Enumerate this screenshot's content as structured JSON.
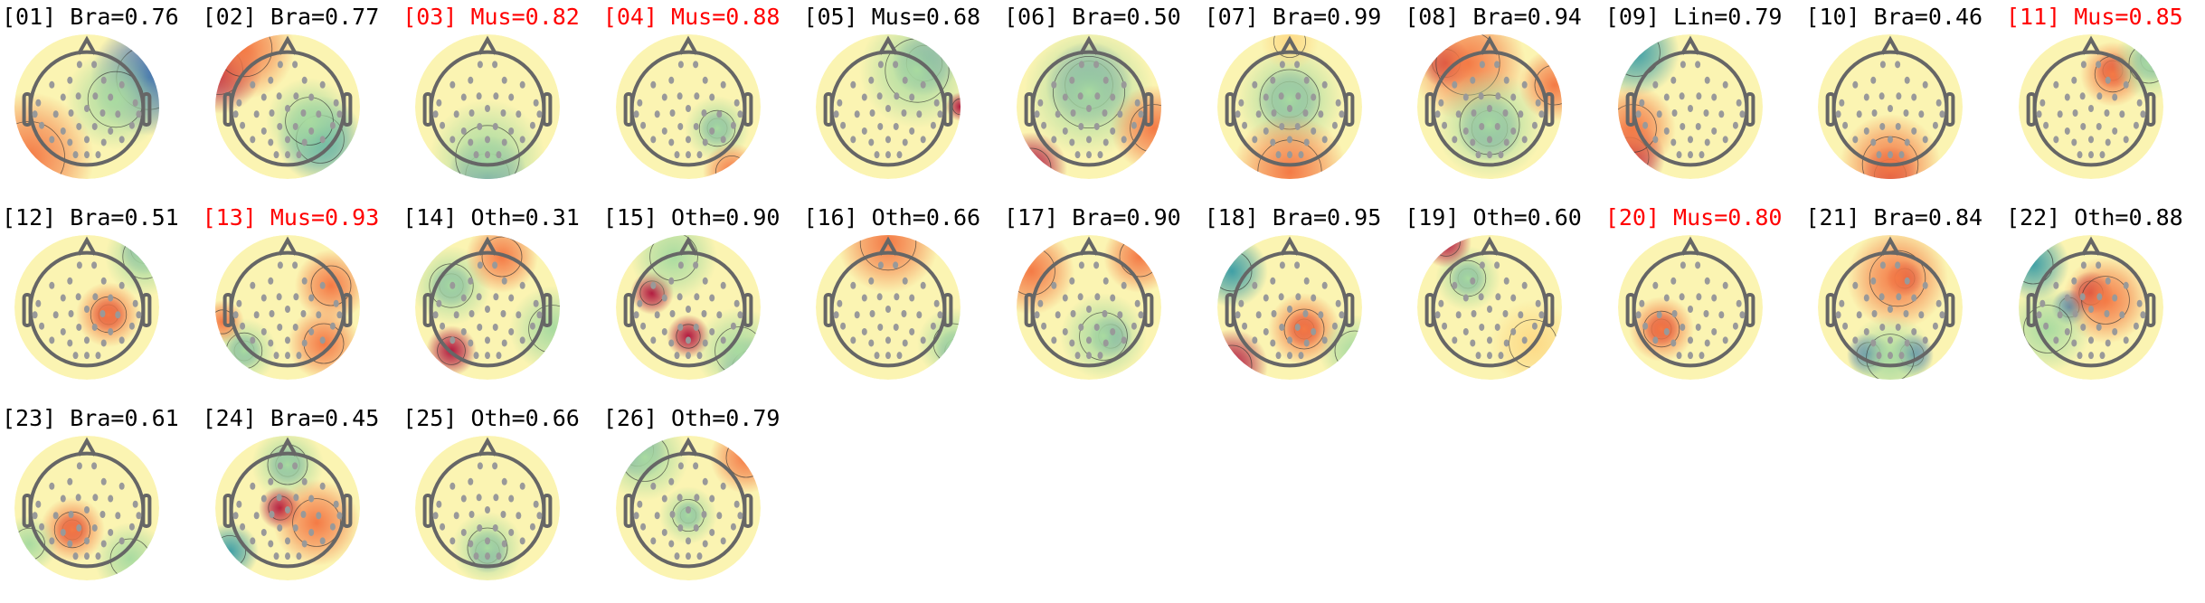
{
  "chart_data": {
    "type": "heatmap",
    "layout": "grid of scalp topographic maps, 11 per row",
    "colormap": "Spectral_r (blue-yellow-red)",
    "highlight_color": "#ff0000",
    "components": [
      {
        "index": "01",
        "label": "Bra",
        "score": "0.76",
        "title": "[01] Bra=0.76",
        "highlighted": false
      },
      {
        "index": "02",
        "label": "Bra",
        "score": "0.77",
        "title": "[02] Bra=0.77",
        "highlighted": false
      },
      {
        "index": "03",
        "label": "Mus",
        "score": "0.82",
        "title": "[03] Mus=0.82",
        "highlighted": true
      },
      {
        "index": "04",
        "label": "Mus",
        "score": "0.88",
        "title": "[04] Mus=0.88",
        "highlighted": true
      },
      {
        "index": "05",
        "label": "Mus",
        "score": "0.68",
        "title": "[05] Mus=0.68",
        "highlighted": false
      },
      {
        "index": "06",
        "label": "Bra",
        "score": "0.50",
        "title": "[06] Bra=0.50",
        "highlighted": false
      },
      {
        "index": "07",
        "label": "Bra",
        "score": "0.99",
        "title": "[07] Bra=0.99",
        "highlighted": false
      },
      {
        "index": "08",
        "label": "Bra",
        "score": "0.94",
        "title": "[08] Bra=0.94",
        "highlighted": false
      },
      {
        "index": "09",
        "label": "Lin",
        "score": "0.79",
        "title": "[09] Lin=0.79",
        "highlighted": false
      },
      {
        "index": "10",
        "label": "Bra",
        "score": "0.46",
        "title": "[10] Bra=0.46",
        "highlighted": false
      },
      {
        "index": "11",
        "label": "Mus",
        "score": "0.85",
        "title": "[11] Mus=0.85",
        "highlighted": true
      },
      {
        "index": "12",
        "label": "Bra",
        "score": "0.51",
        "title": "[12] Bra=0.51",
        "highlighted": false
      },
      {
        "index": "13",
        "label": "Mus",
        "score": "0.93",
        "title": "[13] Mus=0.93",
        "highlighted": true
      },
      {
        "index": "14",
        "label": "Oth",
        "score": "0.31",
        "title": "[14] Oth=0.31",
        "highlighted": false
      },
      {
        "index": "15",
        "label": "Oth",
        "score": "0.90",
        "title": "[15] Oth=0.90",
        "highlighted": false
      },
      {
        "index": "16",
        "label": "Oth",
        "score": "0.66",
        "title": "[16] Oth=0.66",
        "highlighted": false
      },
      {
        "index": "17",
        "label": "Bra",
        "score": "0.90",
        "title": "[17] Bra=0.90",
        "highlighted": false
      },
      {
        "index": "18",
        "label": "Bra",
        "score": "0.95",
        "title": "[18] Bra=0.95",
        "highlighted": false
      },
      {
        "index": "19",
        "label": "Oth",
        "score": "0.60",
        "title": "[19] Oth=0.60",
        "highlighted": false
      },
      {
        "index": "20",
        "label": "Mus",
        "score": "0.80",
        "title": "[20] Mus=0.80",
        "highlighted": true
      },
      {
        "index": "21",
        "label": "Bra",
        "score": "0.84",
        "title": "[21] Bra=0.84",
        "highlighted": false
      },
      {
        "index": "22",
        "label": "Oth",
        "score": "0.88",
        "title": "[22] Oth=0.88",
        "highlighted": false
      },
      {
        "index": "23",
        "label": "Bra",
        "score": "0.61",
        "title": "[23] Bra=0.61",
        "highlighted": false
      },
      {
        "index": "24",
        "label": "Bra",
        "score": "0.45",
        "title": "[24] Bra=0.45",
        "highlighted": false
      },
      {
        "index": "25",
        "label": "Oth",
        "score": "0.66",
        "title": "[25] Oth=0.66",
        "highlighted": false
      },
      {
        "index": "26",
        "label": "Oth",
        "score": "0.79",
        "title": "[26] Oth=0.79",
        "highlighted": false
      }
    ]
  }
}
